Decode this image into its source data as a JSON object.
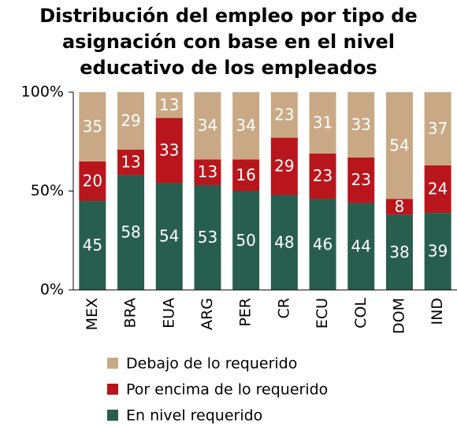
{
  "chart_data": {
    "type": "stacked_bar",
    "title": "Distribución del empleo por tipo de asignación con base en el nivel educativo de los empleados",
    "categories": [
      "MEX",
      "BRA",
      "EUA",
      "ARG",
      "PER",
      "CR",
      "ECU",
      "COL",
      "DOM",
      "IND"
    ],
    "series": [
      {
        "name": "En nivel requerido",
        "color": "#285e4e",
        "values": [
          45,
          58,
          54,
          53,
          50,
          48,
          46,
          44,
          38,
          39
        ]
      },
      {
        "name": "Por encima de lo requerido",
        "color": "#b8161c",
        "values": [
          20,
          13,
          33,
          13,
          16,
          29,
          23,
          23,
          8,
          24
        ]
      },
      {
        "name": "Debajo de lo requerido",
        "color": "#c9a985",
        "values": [
          35,
          29,
          13,
          34,
          34,
          23,
          31,
          33,
          54,
          37
        ]
      }
    ],
    "ylim": [
      0,
      100
    ],
    "yticks": [
      {
        "value": 0,
        "label": "0%"
      },
      {
        "value": 50,
        "label": "50%"
      },
      {
        "value": 100,
        "label": "100%"
      }
    ],
    "legend": "bottom"
  }
}
